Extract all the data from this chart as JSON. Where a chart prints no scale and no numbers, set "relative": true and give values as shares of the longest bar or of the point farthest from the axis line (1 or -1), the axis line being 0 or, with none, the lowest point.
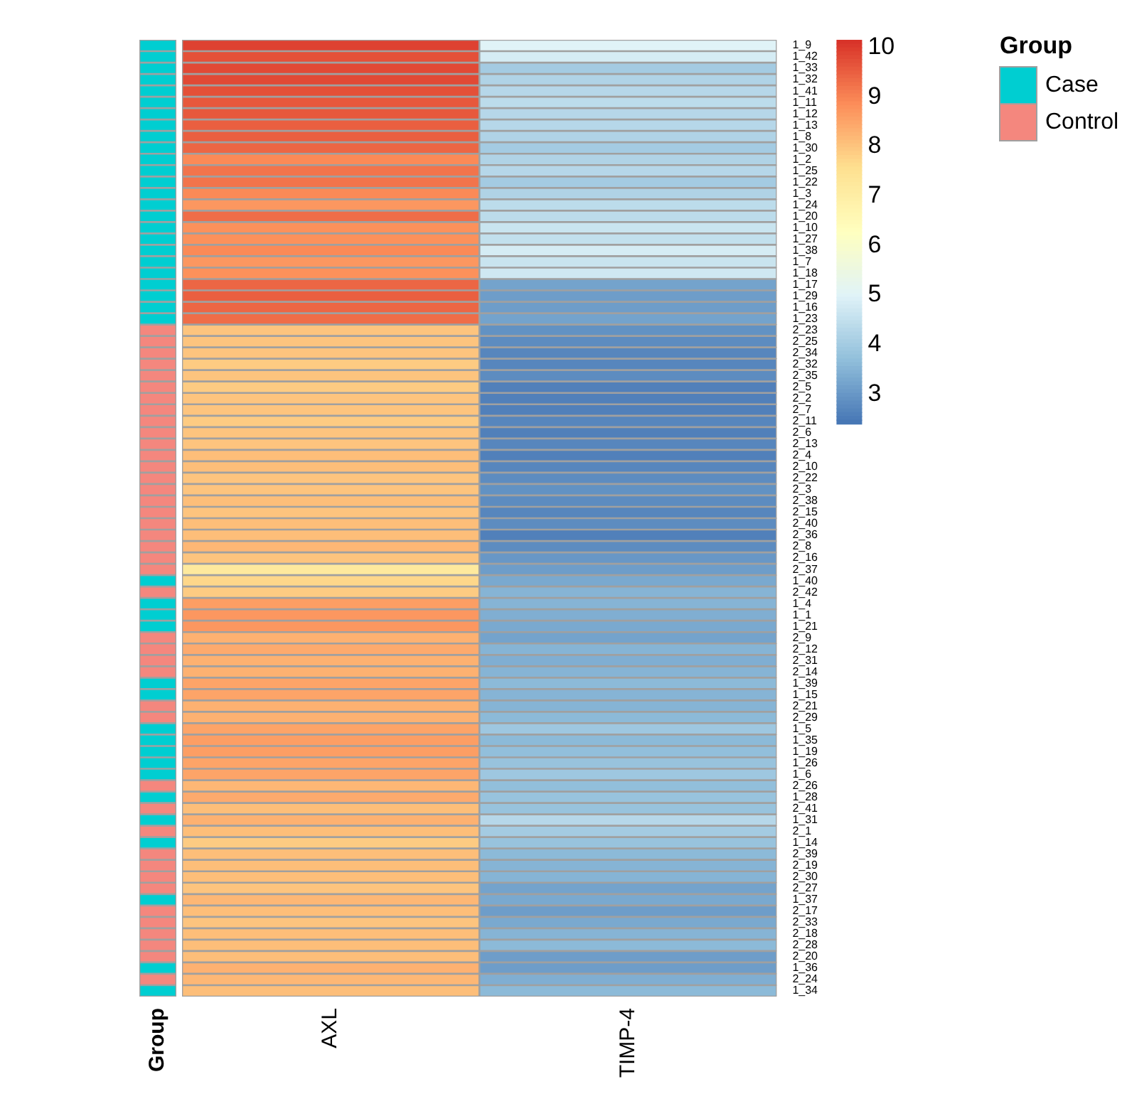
{
  "chart_data": [
    {
      "type": "bar",
      "orientation": "horizontal",
      "stacked": true,
      "relative": true,
      "tick_labels": false,
      "annotations": [
        "Group"
      ],
      "legend_title": "Group",
      "legend": "right",
      "categories": [
        null,
        null,
        null,
        null,
        null,
        null,
        null,
        null,
        null,
        null,
        null,
        null,
        null,
        null,
        null,
        null,
        null,
        null,
        null,
        null,
        null,
        null,
        null,
        null,
        null,
        null,
        null,
        null,
        null,
        null,
        null,
        null,
        null,
        null,
        null,
        null,
        null,
        null,
        null,
        null,
        null,
        null,
        null,
        null,
        null,
        null,
        null,
        null,
        null,
        null,
        null,
        null,
        null,
        null,
        null,
        null,
        null,
        null,
        null,
        null,
        null,
        null,
        null,
        null,
        null,
        null,
        null,
        null,
        null,
        null,
        null,
        null,
        null,
        null,
        null,
        null,
        null,
        null,
        null,
        null,
        null,
        null,
        null,
        null
      ],
      "series": [
        {
          "name": "Case",
          "color": "#00ced1",
          "values": [
            1,
            1,
            1,
            1,
            1,
            1,
            1,
            1,
            1,
            1,
            1,
            1,
            1,
            1,
            1,
            1,
            1,
            1,
            1,
            1,
            1,
            1,
            1,
            1,
            1,
            null,
            null,
            null,
            null,
            null,
            null,
            null,
            null,
            null,
            null,
            null,
            null,
            null,
            null,
            null,
            null,
            null,
            null,
            null,
            null,
            null,
            null,
            1,
            null,
            1,
            1,
            1,
            null,
            null,
            null,
            null,
            1,
            1,
            null,
            null,
            1,
            1,
            1,
            1,
            1,
            null,
            1,
            null,
            1,
            null,
            1,
            null,
            null,
            null,
            null,
            1,
            null,
            null,
            null,
            null,
            null,
            1,
            null,
            1
          ]
        },
        {
          "name": "Control",
          "color": "#f4877e",
          "values": [
            null,
            null,
            null,
            null,
            null,
            null,
            null,
            null,
            null,
            null,
            null,
            null,
            null,
            null,
            null,
            null,
            null,
            null,
            null,
            null,
            null,
            null,
            null,
            null,
            null,
            1,
            1,
            1,
            1,
            1,
            1,
            1,
            1,
            1,
            1,
            1,
            1,
            1,
            1,
            1,
            1,
            1,
            1,
            1,
            1,
            1,
            1,
            null,
            1,
            null,
            null,
            null,
            1,
            1,
            1,
            1,
            null,
            null,
            1,
            1,
            null,
            null,
            null,
            null,
            null,
            1,
            null,
            1,
            null,
            1,
            null,
            1,
            1,
            1,
            1,
            null,
            1,
            1,
            1,
            1,
            1,
            null,
            1,
            null
          ]
        }
      ]
    },
    {
      "type": "heatmap",
      "categories": [
        "AXL",
        "TIMP-4"
      ],
      "y_categories": [
        "1_9",
        "1_42",
        "1_33",
        "1_32",
        "1_41",
        "1_11",
        "1_12",
        "1_13",
        "1_8",
        "1_30",
        "1_2",
        "1_25",
        "1_22",
        "1_3",
        "1_24",
        "1_20",
        "1_10",
        "1_27",
        "1_38",
        "1_7",
        "1_18",
        "1_17",
        "1_29",
        "1_16",
        "1_23",
        "2_23",
        "2_25",
        "2_34",
        "2_32",
        "2_35",
        "2_5",
        "2_2",
        "2_7",
        "2_11",
        "2_6",
        "2_13",
        "2_4",
        "2_10",
        "2_22",
        "2_3",
        "2_38",
        "2_15",
        "2_40",
        "2_36",
        "2_8",
        "2_16",
        "2_37",
        "1_40",
        "2_42",
        "1_4",
        "1_1",
        "1_21",
        "2_9",
        "2_12",
        "2_31",
        "2_14",
        "1_39",
        "1_15",
        "2_21",
        "2_29",
        "1_5",
        "1_35",
        "1_19",
        "1_26",
        "1_6",
        "2_26",
        "1_28",
        "2_41",
        "1_31",
        "2_1",
        "1_14",
        "2_39",
        "2_19",
        "2_30",
        "2_27",
        "1_37",
        "2_17",
        "2_33",
        "2_18",
        "2_28",
        "2_20",
        "1_36",
        "2_24",
        "1_34"
      ],
      "cells": [
        [
          9.9,
          5.0
        ],
        [
          9.7,
          4.8
        ],
        [
          9.8,
          4.0
        ],
        [
          9.8,
          4.2
        ],
        [
          9.7,
          4.3
        ],
        [
          9.6,
          4.4
        ],
        [
          9.6,
          4.3
        ],
        [
          9.5,
          4.3
        ],
        [
          9.5,
          4.2
        ],
        [
          9.4,
          4.0
        ],
        [
          8.9,
          4.2
        ],
        [
          9.2,
          4.3
        ],
        [
          9.2,
          4.0
        ],
        [
          8.9,
          4.2
        ],
        [
          8.7,
          4.4
        ],
        [
          9.3,
          4.4
        ],
        [
          8.8,
          4.6
        ],
        [
          8.8,
          4.5
        ],
        [
          8.9,
          4.8
        ],
        [
          8.7,
          4.6
        ],
        [
          8.8,
          4.7
        ],
        [
          9.4,
          3.2
        ],
        [
          9.5,
          3.1
        ],
        [
          9.4,
          3.1
        ],
        [
          9.3,
          3.2
        ],
        [
          8.0,
          2.9
        ],
        [
          8.0,
          2.8
        ],
        [
          8.0,
          2.7
        ],
        [
          7.9,
          2.7
        ],
        [
          8.0,
          2.8
        ],
        [
          7.9,
          2.6
        ],
        [
          8.0,
          2.6
        ],
        [
          8.0,
          2.6
        ],
        [
          7.9,
          2.7
        ],
        [
          8.0,
          2.6
        ],
        [
          8.0,
          2.7
        ],
        [
          8.1,
          2.6
        ],
        [
          8.1,
          2.7
        ],
        [
          8.0,
          2.8
        ],
        [
          8.0,
          2.9
        ],
        [
          8.1,
          2.8
        ],
        [
          8.0,
          2.7
        ],
        [
          8.1,
          2.8
        ],
        [
          8.1,
          2.6
        ],
        [
          8.2,
          2.8
        ],
        [
          8.0,
          3.0
        ],
        [
          7.2,
          3.1
        ],
        [
          7.7,
          3.3
        ],
        [
          7.9,
          3.5
        ],
        [
          8.6,
          3.5
        ],
        [
          8.7,
          3.4
        ],
        [
          8.7,
          3.3
        ],
        [
          8.3,
          3.2
        ],
        [
          8.4,
          3.5
        ],
        [
          8.3,
          3.4
        ],
        [
          8.3,
          3.5
        ],
        [
          8.5,
          3.6
        ],
        [
          8.5,
          3.5
        ],
        [
          8.3,
          3.5
        ],
        [
          8.3,
          3.6
        ],
        [
          8.5,
          3.9
        ],
        [
          8.6,
          3.6
        ],
        [
          8.6,
          3.7
        ],
        [
          8.5,
          3.8
        ],
        [
          8.5,
          3.9
        ],
        [
          8.2,
          3.7
        ],
        [
          8.4,
          3.8
        ],
        [
          8.1,
          3.8
        ],
        [
          8.3,
          4.3
        ],
        [
          8.1,
          4.0
        ],
        [
          7.9,
          3.8
        ],
        [
          8.1,
          3.6
        ],
        [
          8.1,
          3.5
        ],
        [
          8.1,
          3.5
        ],
        [
          8.0,
          3.2
        ],
        [
          8.2,
          3.3
        ],
        [
          8.1,
          3.1
        ],
        [
          8.0,
          3.3
        ],
        [
          8.1,
          3.5
        ],
        [
          8.1,
          3.6
        ],
        [
          8.1,
          3.1
        ],
        [
          8.3,
          3.1
        ],
        [
          8.2,
          3.4
        ],
        [
          8.1,
          3.6
        ]
      ],
      "clim": [
        2.4,
        10.15
      ],
      "cticks": [
        3,
        4,
        5,
        6,
        7,
        8,
        9,
        10
      ]
    }
  ]
}
